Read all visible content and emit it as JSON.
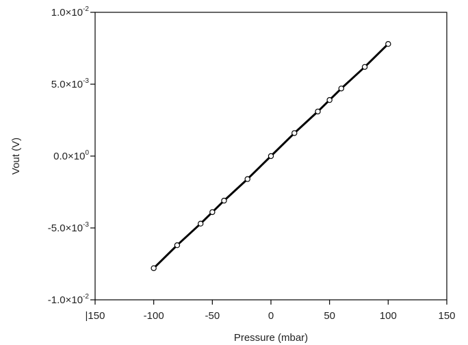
{
  "chart_data": {
    "type": "line",
    "xlabel": "Pressure (mbar)",
    "ylabel": "Vout (V)",
    "xlim": [
      -150,
      150
    ],
    "ylim": [
      -0.01,
      0.01
    ],
    "grid": false,
    "x_ticks": [
      {
        "value": -150,
        "label": "|150"
      },
      {
        "value": -100,
        "label": "-100"
      },
      {
        "value": -50,
        "label": "-50"
      },
      {
        "value": 0,
        "label": "0"
      },
      {
        "value": 50,
        "label": "50"
      },
      {
        "value": 100,
        "label": "100"
      },
      {
        "value": 150,
        "label": "150"
      }
    ],
    "y_ticks": [
      {
        "value": 0.01,
        "mantissa": "1.0",
        "exponent": "-2"
      },
      {
        "value": 0.005,
        "mantissa": "5.0",
        "exponent": "-3"
      },
      {
        "value": 0,
        "mantissa": "0.0",
        "exponent": "0"
      },
      {
        "value": -0.005,
        "mantissa": "-5.0",
        "exponent": "-3"
      },
      {
        "value": -0.01,
        "mantissa": "-1.0",
        "exponent": "-2"
      }
    ],
    "series": [
      {
        "line_color": "#000000",
        "marker": "open-circle",
        "x": [
          -100,
          -80,
          -60,
          -50,
          -40,
          -20,
          0,
          20,
          40,
          50,
          60,
          80,
          100
        ],
        "y": [
          -0.0078,
          -0.0062,
          -0.0047,
          -0.0039,
          -0.0031,
          -0.0016,
          0.0,
          0.0016,
          0.0031,
          0.0039,
          0.0047,
          0.0062,
          0.0078
        ]
      }
    ]
  }
}
